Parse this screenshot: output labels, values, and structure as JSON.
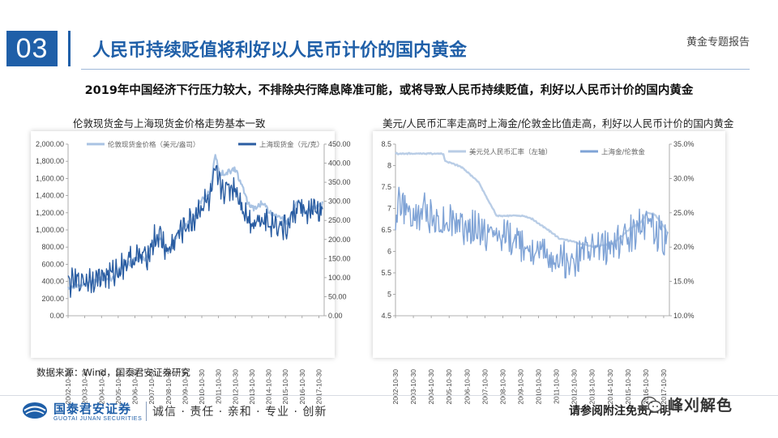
{
  "header": {
    "section_number": "03",
    "title": "人民币持续贬值将利好以人民币计价的国内黄金",
    "report_label": "黄金专题报告"
  },
  "subtitle": "2019年中国经济下行压力较大，不排除央行降息降准可能，或将导致人民币持续贬值，利好以人民币计价的国内黄金",
  "footer": {
    "source": "数据来源：Wind，国泰君安证券研究",
    "company_cn": "国泰君安证券",
    "company_en": "GUOTAI JUNAN SECURITIES",
    "slogan": "诚信 · 责任 · 亲和 · 专业 · 创新",
    "disclaimer": "请参阅附注免责声明",
    "watermark": "峰刈解色"
  },
  "colors": {
    "brand_blue": "#1f5fa8",
    "series_light": "#a9c3e3",
    "series_mid": "#8fb0dc",
    "series_dark": "#2a5da2"
  },
  "chart_data": [
    {
      "type": "line",
      "title": "伦敦现货金与上海现货金价格走势基本一致",
      "x_tick_labels": [
        "2002-10-30",
        "2003-10-30",
        "2004-10-30",
        "2005-10-30",
        "2006-10-30",
        "2007-10-30",
        "2008-10-30",
        "2009-10-30",
        "2010-10-30",
        "2011-10-30",
        "2012-10-30",
        "2013-10-30",
        "2014-10-30",
        "2015-10-30",
        "2016-10-30",
        "2017-10-30"
      ],
      "y_left": {
        "ticks": [
          "0.00",
          "200.00",
          "400.00",
          "600.00",
          "800.00",
          "1,000.00",
          "1,200.00",
          "1,400.00",
          "1,600.00",
          "1,800.00",
          "2,000.00"
        ],
        "range": [
          0,
          2000
        ]
      },
      "y_right": {
        "ticks": [
          "0.00",
          "50.00",
          "100.00",
          "150.00",
          "200.00",
          "250.00",
          "300.00",
          "350.00",
          "400.00",
          "450.00"
        ],
        "range": [
          0,
          450
        ]
      },
      "legend_position": "top",
      "series": [
        {
          "name": "伦敦现货金价格（美元/盎司）",
          "axis": "left",
          "x": [
            2002.83,
            2003.5,
            2004.0,
            2004.5,
            2005.0,
            2005.5,
            2006.0,
            2006.5,
            2007.0,
            2007.5,
            2008.0,
            2008.3,
            2008.8,
            2009.3,
            2009.8,
            2010.3,
            2010.8,
            2011.3,
            2011.65,
            2011.9,
            2012.3,
            2012.8,
            2013.3,
            2013.6,
            2014.0,
            2014.5,
            2014.9,
            2015.5,
            2015.9,
            2016.3,
            2016.6,
            2017.0,
            2017.5,
            2017.9,
            2018.1
          ],
          "y": [
            320,
            350,
            400,
            400,
            430,
            440,
            550,
            620,
            650,
            670,
            890,
            920,
            750,
            930,
            1050,
            1120,
            1350,
            1430,
            1880,
            1650,
            1660,
            1720,
            1480,
            1300,
            1240,
            1320,
            1200,
            1170,
            1070,
            1240,
            1340,
            1200,
            1260,
            1280,
            1320
          ]
        },
        {
          "name": "上海现货金（元/克）",
          "axis": "right",
          "x": [
            2002.83,
            2003.5,
            2004.0,
            2004.5,
            2005.0,
            2005.5,
            2006.0,
            2006.5,
            2007.0,
            2007.5,
            2008.0,
            2008.3,
            2008.8,
            2009.3,
            2009.8,
            2010.3,
            2010.8,
            2011.3,
            2011.65,
            2011.9,
            2012.3,
            2012.8,
            2013.3,
            2013.6,
            2014.0,
            2014.5,
            2014.9,
            2015.5,
            2015.9,
            2016.3,
            2016.6,
            2017.0,
            2017.5,
            2017.9,
            2018.1
          ],
          "y": [
            85,
            90,
            95,
            100,
            105,
            108,
            130,
            148,
            152,
            155,
            200,
            210,
            165,
            205,
            235,
            250,
            290,
            300,
            370,
            340,
            330,
            340,
            285,
            255,
            245,
            260,
            245,
            240,
            225,
            265,
            290,
            270,
            275,
            270,
            268
          ]
        }
      ]
    },
    {
      "type": "line",
      "title": "美元/人民币汇率走高时上海金/伦敦金比值走高，利好以人民币计价的国内黄金",
      "x_tick_labels": [
        "2002-10-30",
        "2003-10-30",
        "2004-10-30",
        "2005-10-30",
        "2006-10-30",
        "2007-10-30",
        "2008-10-30",
        "2009-10-30",
        "2010-10-30",
        "2011-10-30",
        "2012-10-30",
        "2013-10-30",
        "2014-10-30",
        "2015-10-30",
        "2016-10-30",
        "2017-10-30"
      ],
      "y_left": {
        "ticks": [
          "4.5",
          "5",
          "5.5",
          "6",
          "6.5",
          "7",
          "7.5",
          "8",
          "8.5"
        ],
        "range": [
          4.5,
          8.5
        ]
      },
      "y_right": {
        "ticks": [
          "10.0%",
          "15.0%",
          "20.0%",
          "25.0%",
          "30.0%",
          "35.0%"
        ],
        "range": [
          10,
          35
        ]
      },
      "legend_position": "top",
      "series": [
        {
          "name": "美元兑人民币汇率（左轴）",
          "axis": "left",
          "x": [
            2002.83,
            2005.5,
            2005.6,
            2006.5,
            2007.0,
            2007.5,
            2008.0,
            2008.5,
            2009.0,
            2010.0,
            2010.5,
            2011.0,
            2011.5,
            2012.0,
            2013.0,
            2014.0,
            2014.5,
            2015.0,
            2015.6,
            2016.0,
            2016.5,
            2016.9,
            2017.3,
            2017.8,
            2018.1
          ],
          "y": [
            8.28,
            8.28,
            8.11,
            7.97,
            7.8,
            7.6,
            7.2,
            6.83,
            6.83,
            6.83,
            6.75,
            6.6,
            6.46,
            6.3,
            6.2,
            6.1,
            6.15,
            6.2,
            6.4,
            6.55,
            6.65,
            6.9,
            6.88,
            6.6,
            6.4
          ]
        },
        {
          "name": "上海金/伦敦金",
          "axis": "right",
          "x": [
            2002.83,
            2003.0,
            2003.5,
            2004.0,
            2004.5,
            2005.0,
            2005.5,
            2006.0,
            2006.5,
            2007.0,
            2007.5,
            2008.0,
            2008.5,
            2009.0,
            2009.5,
            2010.0,
            2010.5,
            2011.0,
            2011.5,
            2012.0,
            2012.5,
            2013.0,
            2013.5,
            2014.0,
            2014.5,
            2015.0,
            2015.5,
            2016.0,
            2016.5,
            2016.9,
            2017.3,
            2017.8,
            2018.1
          ],
          "y": [
            24,
            27,
            25,
            24,
            25.5,
            24,
            23.5,
            24,
            23,
            22.5,
            22.5,
            21.5,
            22,
            21.5,
            21,
            20.5,
            20,
            19.5,
            18.5,
            18,
            17.8,
            18.5,
            19,
            19.5,
            19.8,
            20.5,
            21,
            22,
            23,
            24.5,
            22.5,
            21,
            20.5
          ]
        }
      ]
    }
  ]
}
